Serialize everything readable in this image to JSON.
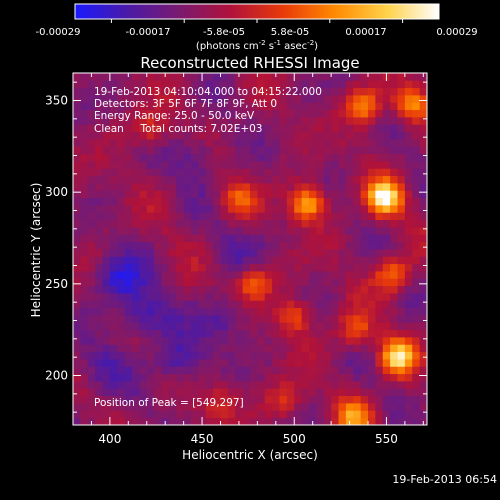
{
  "colorbar": {
    "ticks": [
      "-0.00029",
      "-0.00017",
      "-5.8e-05",
      "5.8e-05",
      "0.00017",
      "0.00029"
    ],
    "tick_values": [
      -0.00029,
      -0.00017,
      -5.8e-05,
      5.8e-05,
      0.00017,
      0.00029
    ],
    "units_prefix": "(photons cm",
    "units_exp1": "-2",
    "units_mid": " s",
    "units_exp2": "-1",
    "units_mid2": " asec",
    "units_exp3": "-2",
    "units_suffix": ")",
    "stops": [
      "#1a1aff",
      "#4a1aa8",
      "#7a1a70",
      "#b0123a",
      "#e83a0a",
      "#ff8a00",
      "#ffd24a",
      "#ffffff"
    ]
  },
  "overlay": {
    "line1": "19-Feb-2013 04:10:04.000 to 04:15:22.000",
    "line2": "Detectors: 3F 5F 6F 7F 8F 9F, Att 0",
    "line3": "Energy Range: 25.0 - 50.0 keV",
    "line4": "Clean     Total counts: 7.02E+03",
    "peak": "Position of Peak = [549,297]"
  },
  "timestamp": "19-Feb-2013 06:54",
  "chart_data": {
    "type": "heatmap",
    "title": "Reconstructed RHESSI Image",
    "xlabel": "Heliocentric X (arcsec)",
    "ylabel": "Heliocentric Y (arcsec)",
    "xlim": [
      380,
      572
    ],
    "ylim": [
      173,
      365
    ],
    "xticks": [
      400,
      450,
      500,
      550
    ],
    "yticks": [
      200,
      250,
      300,
      350
    ],
    "peak": {
      "x": 549,
      "y": 297
    },
    "hotspots": [
      {
        "x": 549,
        "y": 297,
        "intensity": 1.0
      },
      {
        "x": 556,
        "y": 210,
        "intensity": 0.85
      },
      {
        "x": 507,
        "y": 294,
        "intensity": 0.75
      },
      {
        "x": 553,
        "y": 255,
        "intensity": 0.55
      },
      {
        "x": 538,
        "y": 347,
        "intensity": 0.6
      },
      {
        "x": 563,
        "y": 348,
        "intensity": 0.55
      },
      {
        "x": 478,
        "y": 250,
        "intensity": 0.5
      },
      {
        "x": 500,
        "y": 232,
        "intensity": 0.45
      },
      {
        "x": 470,
        "y": 296,
        "intensity": 0.4
      },
      {
        "x": 533,
        "y": 178,
        "intensity": 0.55
      },
      {
        "x": 495,
        "y": 186,
        "intensity": 0.35
      },
      {
        "x": 422,
        "y": 334,
        "intensity": 0.35
      },
      {
        "x": 460,
        "y": 186,
        "intensity": 0.3
      },
      {
        "x": 533,
        "y": 225,
        "intensity": 0.45
      }
    ],
    "coldspots": [
      {
        "x": 405,
        "y": 253,
        "depth": 0.8
      },
      {
        "x": 418,
        "y": 233,
        "depth": 0.75
      },
      {
        "x": 437,
        "y": 208,
        "depth": 0.7
      },
      {
        "x": 448,
        "y": 320,
        "depth": 0.5
      },
      {
        "x": 395,
        "y": 205,
        "depth": 0.45
      },
      {
        "x": 462,
        "y": 230,
        "depth": 0.55
      },
      {
        "x": 470,
        "y": 270,
        "depth": 0.35
      }
    ]
  }
}
